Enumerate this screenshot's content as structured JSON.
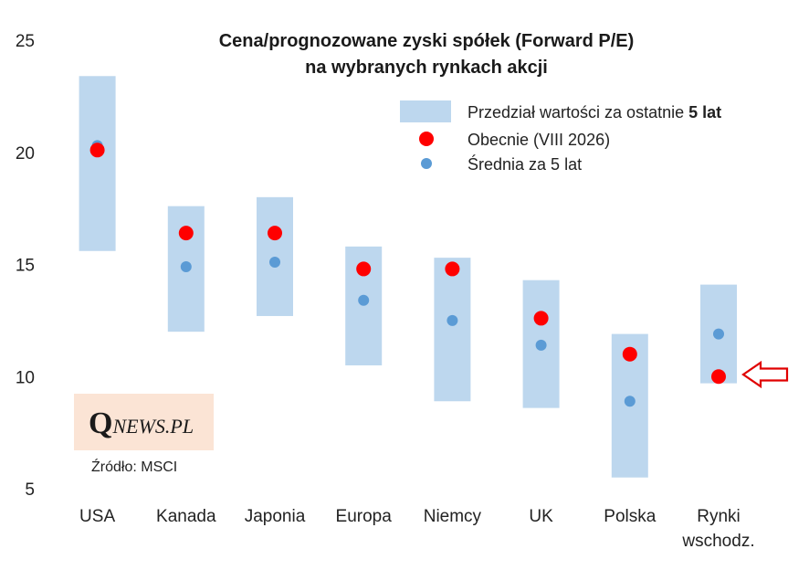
{
  "chart_data": {
    "type": "range-dot",
    "title": [
      "Cena/prognozowane zyski spółek (Forward P/E)",
      "na wybranych rynkach akcji"
    ],
    "ylim": [
      5,
      25
    ],
    "yticks": [
      5,
      10,
      15,
      20,
      25
    ],
    "grid": false,
    "categories": [
      [
        "USA"
      ],
      [
        "Kanada"
      ],
      [
        "Japonia"
      ],
      [
        "Europa"
      ],
      [
        "Niemcy"
      ],
      [
        "UK"
      ],
      [
        "Polska"
      ],
      [
        "Rynki",
        "wschodz."
      ]
    ],
    "series": [
      {
        "name_parts": [
          "Przedział wartości za ostatnie ",
          "5 lat"
        ],
        "kind": "range",
        "color": "#bdd7ee",
        "low": [
          15.6,
          12.0,
          12.7,
          10.5,
          8.9,
          8.6,
          5.5,
          9.7
        ],
        "high": [
          23.4,
          17.6,
          18.0,
          15.8,
          15.3,
          14.3,
          11.9,
          14.1
        ]
      },
      {
        "name": "Obecnie (VIII 2026)",
        "kind": "dot",
        "color": "#ff0000",
        "values": [
          20.1,
          16.4,
          16.4,
          14.8,
          14.8,
          12.6,
          11.0,
          10.0
        ]
      },
      {
        "name": "Średnia za 5 lat",
        "kind": "dot",
        "color": "#5b9bd5",
        "values": [
          20.3,
          14.9,
          15.1,
          13.4,
          12.5,
          11.4,
          8.9,
          11.9
        ]
      }
    ],
    "annotations": {
      "arrow_category": "Rynki wschodz.",
      "arrow_color": "#e00000"
    }
  },
  "branding": {
    "logo_initial": "Q",
    "logo_rest": "NEWS.PL",
    "logo_bg": "#fbe4d5",
    "source": "Źródło: MSCI"
  }
}
